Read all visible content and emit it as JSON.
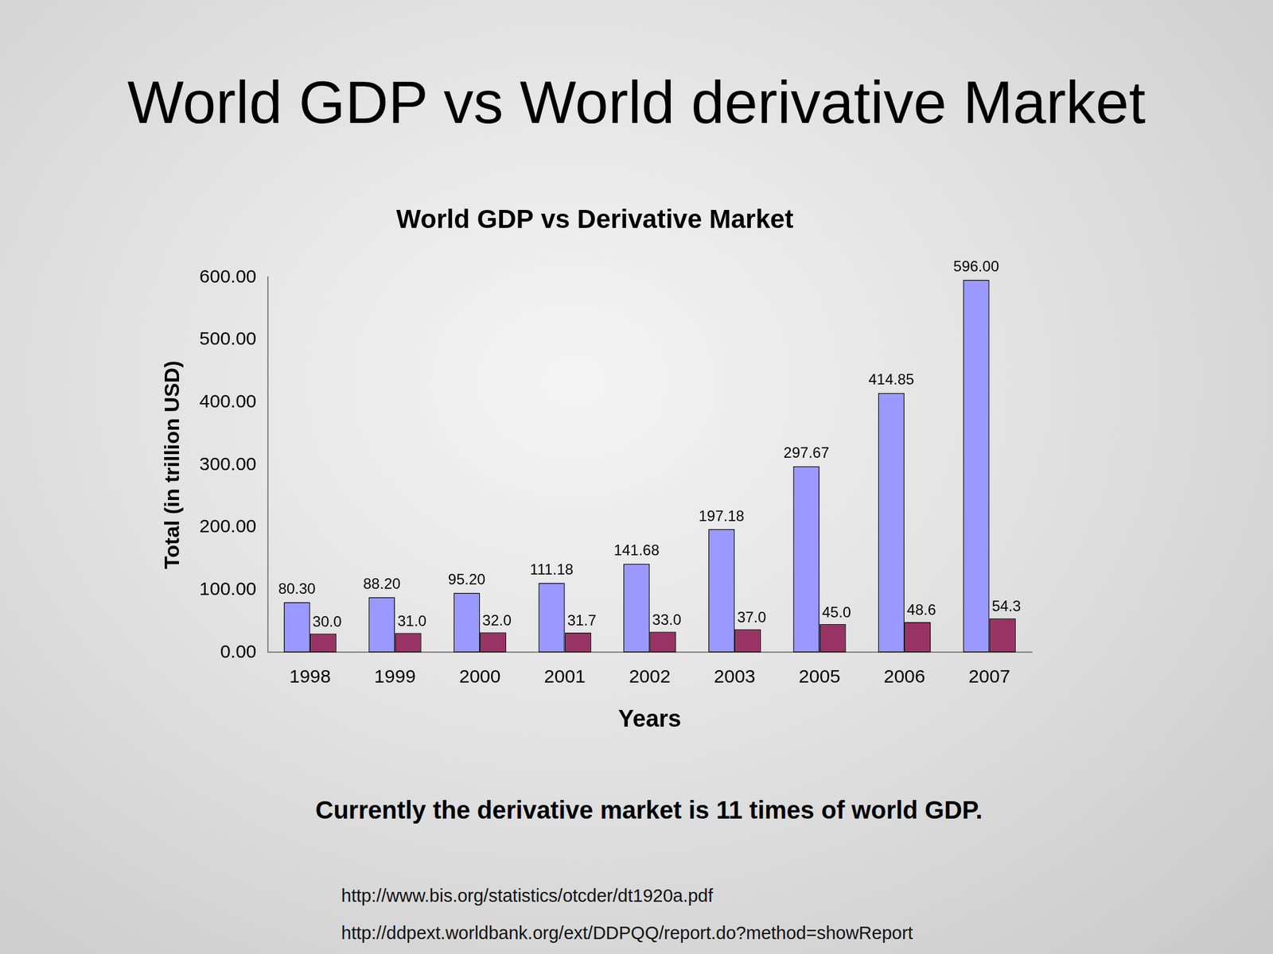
{
  "slide": {
    "title": "World GDP vs World derivative Market",
    "note": "Currently the derivative market is 11 times of world GDP.",
    "sources": [
      "http://www.bis.org/statistics/otcder/dt1920a.pdf",
      "http://ddpext.worldbank.org/ext/DDPQQ/report.do?method=showReport"
    ]
  },
  "chart_data": {
    "type": "bar",
    "title": "World GDP vs Derivative Market",
    "x_label": "Years",
    "y_label": "Total (in trillion USD)",
    "categories": [
      "1998",
      "1999",
      "2000",
      "2001",
      "2002",
      "2003",
      "2005",
      "2006",
      "2007"
    ],
    "series": [
      {
        "color": "#9999ff",
        "values": [
          80.3,
          88.2,
          95.2,
          111.18,
          141.68,
          197.18,
          297.67,
          414.85,
          596.0
        ],
        "value_labels": [
          "80.30",
          "88.20",
          "95.20",
          "111.18",
          "141.68",
          "197.18",
          "297.67",
          "414.85",
          "596.00"
        ]
      },
      {
        "color": "#993366",
        "values": [
          30.0,
          31.0,
          32.0,
          31.7,
          33.0,
          37.0,
          45.0,
          48.6,
          54.3
        ],
        "value_labels": [
          "30.0",
          "31.0",
          "32.0",
          "31.7",
          "33.0",
          "37.0",
          "45.0",
          "48.6",
          "54.3"
        ]
      }
    ],
    "ylim": [
      0,
      600
    ],
    "yticks": [
      {
        "value": 0,
        "label": "0.00"
      },
      {
        "value": 100,
        "label": "100.00"
      },
      {
        "value": 200,
        "label": "200.00"
      },
      {
        "value": 300,
        "label": "300.00"
      },
      {
        "value": 400,
        "label": "400.00"
      },
      {
        "value": 500,
        "label": "500.00"
      },
      {
        "value": 600,
        "label": "600.00"
      }
    ],
    "grid": false,
    "data_labels": true
  }
}
